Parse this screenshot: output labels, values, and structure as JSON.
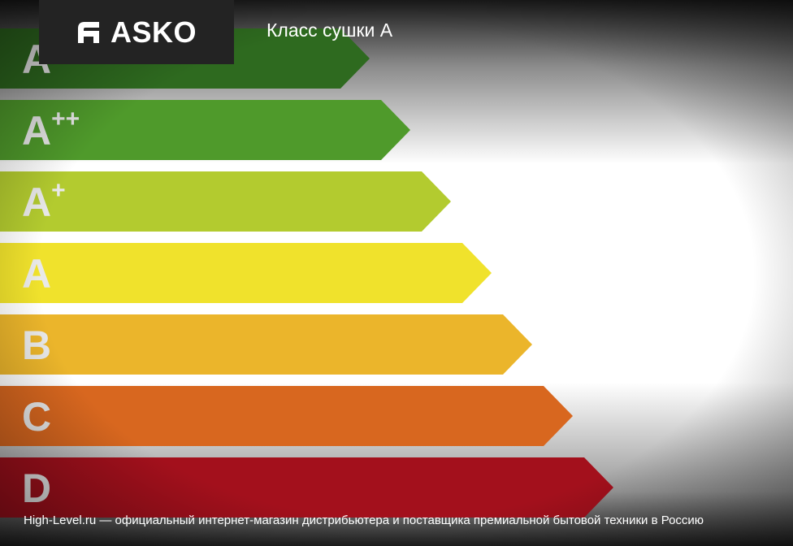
{
  "header": {
    "logo": "ASKO",
    "title": "Класс сушки A"
  },
  "classes": [
    {
      "letter": "A",
      "color": "#2e6a1f"
    },
    {
      "letter": "A",
      "sup": "++",
      "color": "#4f9a2b"
    },
    {
      "letter": "A",
      "sup": "+",
      "color": "#b3cb2f"
    },
    {
      "letter": "A",
      "color": "#f0e22c"
    },
    {
      "letter": "B",
      "color": "#ebb52b"
    },
    {
      "letter": "C",
      "color": "#d8671f"
    },
    {
      "letter": "D",
      "color": "#a3101c"
    }
  ],
  "footer": "High-Level.ru — официальный интернет-магазин дистрибьютера и поставщика премиальной бытовой техники в Россию"
}
